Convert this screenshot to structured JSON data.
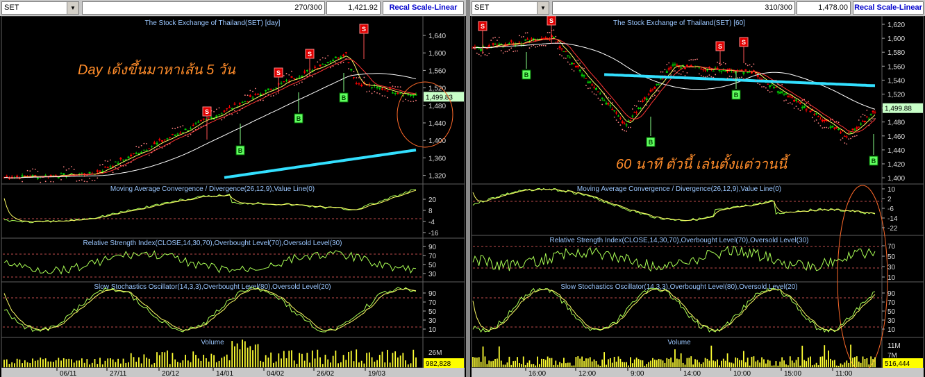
{
  "left": {
    "symbol": "SET",
    "bars": "270/300",
    "last": "1,421.92",
    "recal": "Recal Scale-Linear",
    "title": "The Stock Exchange of Thailand(SET) [day]",
    "price_ticks": [
      "1,640",
      "1,600",
      "1,560",
      "1,520",
      "1,480",
      "1,440",
      "1,400",
      "1,360",
      "1,320"
    ],
    "price_label": "1,499.83",
    "annotation": "Day เด้งขึ้นมาหาเส้น 5 วัน",
    "macd_title": "Moving Average Convergence / Divergence(26,12,9),Value Line(0)",
    "macd_ticks": [
      "20",
      "8",
      "-4",
      "-16"
    ],
    "rsi_title": "Relative Strength Index(CLOSE,14,30,70),Overbought Level(70),Oversold Level(30)",
    "rsi_ticks": [
      "90",
      "70",
      "50",
      "30"
    ],
    "sto_title": "Slow Stochastics Oscillator(14,3,3),Overbought Level(80),Oversold Level(20)",
    "sto_ticks": [
      "90",
      "70",
      "50",
      "30",
      "10"
    ],
    "vol_title": "Volume",
    "vol_ticks": [
      "26M"
    ],
    "vol_label": "982,828",
    "dates": [
      "06/11",
      "27/11",
      "20/12",
      "14/01",
      "04/02",
      "26/02",
      "19/03"
    ],
    "signals": [
      {
        "t": "S",
        "name": "sell-signal"
      },
      {
        "t": "S",
        "name": "sell-signal"
      },
      {
        "t": "S",
        "name": "sell-signal"
      },
      {
        "t": "S",
        "name": "sell-signal"
      },
      {
        "t": "B",
        "name": "buy-signal"
      },
      {
        "t": "B",
        "name": "buy-signal"
      },
      {
        "t": "B",
        "name": "buy-signal"
      }
    ]
  },
  "right": {
    "symbol": "SET",
    "bars": "310/300",
    "last": "1,478.00",
    "recal": "Recal Scale-Linear",
    "title": "The Stock Exchange of Thailand(SET) [60]",
    "price_ticks": [
      "1,620",
      "1,600",
      "1,580",
      "1,560",
      "1,540",
      "1,520",
      "1,500",
      "1,480",
      "1,460",
      "1,440",
      "1,420",
      "1,400"
    ],
    "price_label": "1,499.88",
    "annotation": "60 นาที ตัวนี้ เล่นตั้งแต่วานนี้",
    "macd_title": "Moving Average Convergence / Divergence(26,12,9),Value Line(0)",
    "macd_ticks": [
      "10",
      "2",
      "-6",
      "-14",
      "-22"
    ],
    "rsi_title": "Relative Strength Index(CLOSE,14,30,70),Overbought Level(70),Oversold Level(30)",
    "rsi_ticks": [
      "70",
      "50",
      "30",
      "10"
    ],
    "sto_title": "Slow Stochastics Oscillator(14,3,3),Overbought Level(80),Oversold Level(20)",
    "sto_ticks": [
      "90",
      "70",
      "50",
      "30",
      "10"
    ],
    "vol_title": "Volume",
    "vol_ticks": [
      "11M",
      "7M"
    ],
    "vol_label": "516,444",
    "dates": [
      "16:00",
      "12:00",
      "9:00",
      "14:00",
      "10:00",
      "15:00",
      "11:00"
    ]
  },
  "colors": {
    "bull": "#00cc00",
    "bear": "#ff0000",
    "ma_fast": "#ffff66",
    "ma_mid": "#ff3333",
    "ma_slow": "#ffffff",
    "ma_long": "#33e0ff",
    "ind": "#ffff66",
    "ind2": "#aaff55",
    "level": "#ff6666",
    "annot": "#ff8c2a"
  },
  "chart_data": [
    {
      "type": "line",
      "title": "The Stock Exchange of Thailand(SET) [day]",
      "x": [
        "06/11",
        "27/11",
        "20/12",
        "14/01",
        "04/02",
        "26/02",
        "19/03"
      ],
      "series": [
        {
          "values": [
            1320,
            1335,
            1390,
            1470,
            1530,
            1570,
            1499.83
          ]
        }
      ],
      "ylim": [
        1300,
        1660
      ]
    },
    {
      "type": "line",
      "title": "The Stock Exchange of Thailand(SET) [60]",
      "x": [
        "16:00",
        "12:00",
        "9:00",
        "14:00",
        "10:00",
        "15:00",
        "11:00"
      ],
      "series": [
        {
          "values": [
            1585,
            1600,
            1470,
            1560,
            1555,
            1490,
            1499.88
          ]
        }
      ],
      "ylim": [
        1390,
        1630
      ]
    }
  ]
}
